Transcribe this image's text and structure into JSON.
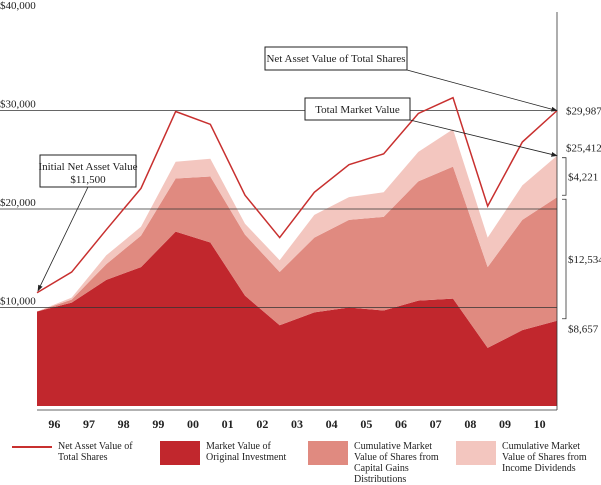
{
  "chart_data": {
    "type": "stacked-area-line",
    "categories": [
      null,
      "96",
      "97",
      "98",
      "99",
      "00",
      "01",
      "02",
      "03",
      "04",
      "05",
      "06",
      "07",
      "08",
      "09",
      "10"
    ],
    "ylim": [
      0,
      40000
    ],
    "yticks": [
      {
        "value": 10000,
        "label": "$10,000"
      },
      {
        "value": 20000,
        "label": "$20,000"
      },
      {
        "value": 30000,
        "label": "$30,000"
      },
      {
        "value": 40000,
        "label": "$40,000"
      }
    ],
    "grid": true,
    "line": {
      "name": "Net Asset Value of Total Shares",
      "color": "#c8302f",
      "values": [
        11500,
        13600,
        17900,
        22100,
        29900,
        28600,
        21400,
        17100,
        21700,
        24500,
        25600,
        29700,
        31300,
        20300,
        26800,
        29987
      ],
      "value_labels": [
        "$11,500",
        null,
        null,
        null,
        null,
        null,
        null,
        null,
        null,
        null,
        null,
        null,
        null,
        null,
        null,
        "$29,987"
      ]
    },
    "series": [
      {
        "name": "Market Value of Original Investment",
        "color": "#c1272d",
        "values": [
          9600,
          10500,
          12800,
          14100,
          17700,
          16600,
          11200,
          8200,
          9500,
          10000,
          9700,
          10700,
          10900,
          5900,
          7700,
          8657
        ],
        "value_labels": [
          null,
          null,
          null,
          null,
          null,
          null,
          null,
          null,
          null,
          null,
          null,
          null,
          null,
          null,
          null,
          "$8,657"
        ]
      },
      {
        "name": "Cumulative Market Value of Shares from Capital Gains Distributions",
        "color": "#e08a80",
        "values": [
          0,
          300,
          1600,
          3200,
          5400,
          6700,
          6200,
          5400,
          7600,
          8900,
          9500,
          12100,
          13400,
          8200,
          11200,
          12534
        ],
        "value_labels": [
          null,
          null,
          null,
          null,
          null,
          null,
          null,
          null,
          null,
          null,
          null,
          null,
          null,
          null,
          null,
          "$12,534"
        ]
      },
      {
        "name": "Cumulative Market Value of Shares from Income Dividends",
        "color": "#f3c6bf",
        "values": [
          0,
          200,
          900,
          900,
          1700,
          1800,
          1100,
          1200,
          2300,
          2300,
          2500,
          3000,
          3800,
          3000,
          3500,
          4221
        ],
        "value_labels": [
          null,
          null,
          null,
          null,
          null,
          null,
          null,
          null,
          null,
          null,
          null,
          null,
          null,
          null,
          null,
          "$4,221"
        ]
      }
    ],
    "total_market_value": {
      "value": 25412,
      "label": "$25,412"
    },
    "annotations": {
      "nav": "Net Asset Value of Total Shares",
      "total": "Total Market Value",
      "initial": "Initial Net Asset Value"
    }
  }
}
